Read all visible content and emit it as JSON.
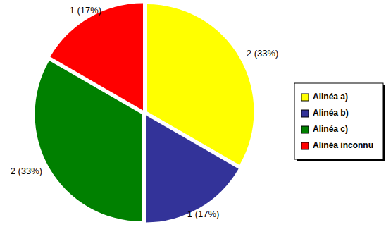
{
  "chart_data": {
    "type": "pie",
    "categories": [
      "Alinéa a)",
      "Alinéa b)",
      "Alinéa c)",
      "Alinéa inconnu"
    ],
    "values": [
      2,
      1,
      2,
      1
    ],
    "value_labels": [
      "2 (33%)",
      "1 (17%)",
      "2 (33%)",
      "1 (17%)"
    ],
    "colors": [
      "#ffff00",
      "#333399",
      "#008000",
      "#ff0000"
    ],
    "data_labels": true,
    "legend": "right"
  }
}
